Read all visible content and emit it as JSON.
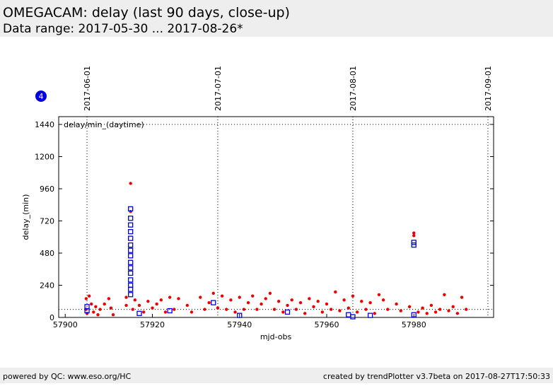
{
  "chart_data": {
    "type": "scatter",
    "title": "OMEGACAM: delay (last 90 days, close-up)",
    "subtitle": "Data range: 2017-05-30 ... 2017-08-26*",
    "badge": "4",
    "legend_text": "delay/min_(daytime)",
    "xlabel": "mjd-obs",
    "ylabel": "delay_(min)",
    "footer_left": "powered by QC: www.eso.org/HC",
    "footer_right": "created by trendPlotter v3.7beta on 2017-08-27T17:50:33",
    "xlim": [
      57898.5,
      57998.3
    ],
    "ylim": [
      0,
      1498
    ],
    "xticks": [
      57900,
      57920,
      57940,
      57960,
      57980
    ],
    "yticks": [
      0,
      240,
      480,
      720,
      960,
      1200,
      1440
    ],
    "x2ticks": [
      {
        "value": 57905,
        "label": "2017-06-01"
      },
      {
        "value": 57935,
        "label": "2017-07-01"
      },
      {
        "value": 57966,
        "label": "2017-08-01"
      },
      {
        "value": 57997,
        "label": "2017-09-01"
      }
    ],
    "hlines": [
      1440,
      60
    ],
    "series": [
      {
        "name": "delay",
        "color": "#ee0000",
        "marker": "dot",
        "x": [
          57904.8,
          57904.8,
          57905,
          57905.5,
          57906,
          57906.5,
          57907,
          57907.5,
          57908,
          57909,
          57910,
          57910.5,
          57911,
          57914,
          57914,
          57915,
          57915,
          57915.5,
          57916,
          57917,
          57918,
          57919,
          57920,
          57921,
          57922,
          57923,
          57924,
          57925,
          57926,
          57928,
          57929,
          57931,
          57932,
          57933,
          57934,
          57935,
          57936,
          57937,
          57938,
          57939,
          57940,
          57941,
          57942,
          57943,
          57944,
          57945,
          57946,
          57947,
          57948,
          57949,
          57950,
          57951,
          57952,
          57953,
          57954,
          57955,
          57956,
          57957,
          57958,
          57959,
          57960,
          57961,
          57962,
          57963,
          57964,
          57965,
          57966,
          57967,
          57968,
          57969,
          57970,
          57971,
          57972,
          57973,
          57974,
          57976,
          57977,
          57979,
          57980,
          57980,
          57981,
          57982,
          57983,
          57984,
          57985,
          57986,
          57987,
          57988,
          57989,
          57990,
          57991,
          57992
        ],
        "values": [
          140,
          60,
          30,
          160,
          100,
          40,
          80,
          20,
          60,
          100,
          140,
          70,
          20,
          150,
          90,
          1000,
          790,
          60,
          130,
          90,
          40,
          120,
          70,
          100,
          130,
          40,
          150,
          60,
          140,
          90,
          40,
          150,
          60,
          110,
          180,
          70,
          160,
          60,
          130,
          40,
          150,
          60,
          110,
          160,
          60,
          100,
          140,
          180,
          60,
          120,
          40,
          90,
          130,
          60,
          110,
          30,
          140,
          80,
          120,
          40,
          100,
          60,
          190,
          50,
          130,
          70,
          160,
          40,
          120,
          60,
          110,
          30,
          170,
          130,
          60,
          100,
          50,
          80,
          630,
          610,
          40,
          70,
          30,
          90,
          40,
          60,
          170,
          50,
          80,
          30,
          150,
          60
        ]
      },
      {
        "name": "median",
        "color": "#0000ee",
        "marker": "square",
        "x": [
          57905,
          57905,
          57915,
          57915,
          57915,
          57915,
          57915,
          57915,
          57915,
          57915,
          57915,
          57915,
          57915,
          57915,
          57915,
          57915,
          57915,
          57917,
          57924,
          57934,
          57940,
          57951,
          57965,
          57966,
          57970,
          57980,
          57980,
          57980
        ],
        "values": [
          80,
          50,
          170,
          210,
          240,
          280,
          330,
          370,
          410,
          460,
          500,
          540,
          590,
          640,
          690,
          740,
          810,
          30,
          50,
          110,
          15,
          40,
          20,
          5,
          15,
          20,
          540,
          560
        ]
      }
    ]
  }
}
